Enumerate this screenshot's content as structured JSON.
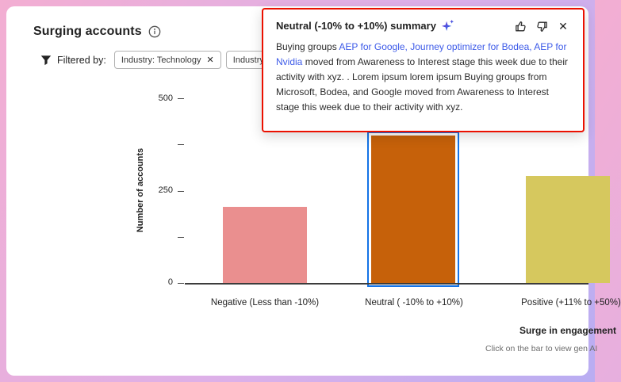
{
  "header": {
    "title": "Surging accounts"
  },
  "filters": {
    "label": "Filtered by:",
    "chips": [
      {
        "label": "Industry: Technology"
      },
      {
        "label": "Industry: So"
      }
    ]
  },
  "icons": {
    "close": "✕"
  },
  "popup": {
    "title": "Neutral (-10% to +10%) summary",
    "body": {
      "text_before": "Buying groups ",
      "link_text": "AEP for Google, Journey optimizer for Bodea, AEP for Nvidia",
      "text_after": " moved from Awareness to Interest stage this week due to their activity with xyz. . Lorem ipsum lorem ipsum Buying groups from Microsoft, Bodea, and Google moved from Awareness to Interest stage this week due to their activity with xyz."
    }
  },
  "colors": {
    "popup_border_red": "#eb1000",
    "link_blue": "#3c5ae8",
    "selection_blue": "#1473e6"
  },
  "chart_data": {
    "type": "bar",
    "categories": [
      "Negative (Less than -10%)",
      "Neutral ( -10% to +10%)",
      "Positive (+11% to +50%)"
    ],
    "values": [
      205,
      400,
      290
    ],
    "bar_colors": [
      "#ea8f8f",
      "#c6610a",
      "#d6c85e"
    ],
    "selected_index": 1,
    "title": "Surging accounts",
    "xlabel": "Surge in engagement",
    "ylabel": "Number of accounts",
    "ylim": [
      0,
      500
    ],
    "yticks": [
      0,
      250,
      500
    ],
    "minor_yticks": [
      125,
      375
    ],
    "grid": false,
    "legend": false
  },
  "footer": {
    "hint": "Click on the bar to view gen AI"
  }
}
